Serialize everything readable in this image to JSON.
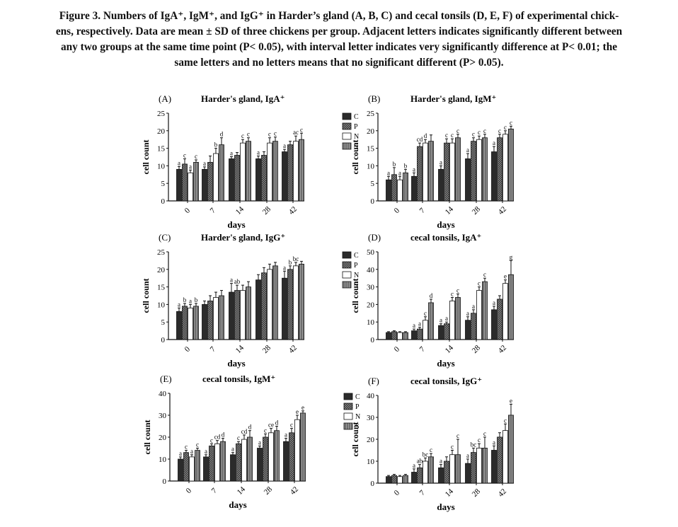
{
  "caption": {
    "l1": "Figure 3. Numbers of IgA⁺, IgM⁺, and IgG⁺ in Harder’s gland (A, B, C) and cecal tonsils (D, E, F) of experimental chick-",
    "l2": "ens, respectively. Data are mean ± SD of three chickens per group. Adjacent letters indicates significantly different between",
    "l3": "any two groups at the same time point (P< 0.05), with interval letter indicates very significantly difference at P< 0.01; the",
    "l4": "same letters and no letters means that no significant different (P> 0.05)."
  },
  "colors": {
    "C": "#2b2b2b",
    "P": "#555555",
    "N": "#ffffff",
    "S": "#7a7a7a",
    "frame": "#111111"
  },
  "chart_data": [
    {
      "panel": "(A)",
      "title": "Harder's gland, IgA⁺",
      "type": "bar",
      "xlabel": "days",
      "ylabel": "cell count",
      "categories": [
        "0",
        "7",
        "14",
        "28",
        "42"
      ],
      "ylim": [
        0,
        25
      ],
      "yticks": [
        0,
        5,
        10,
        15,
        20,
        25
      ],
      "legend": [
        "C",
        "P",
        "N",
        "S"
      ],
      "series": [
        {
          "name": "C",
          "values": [
            9,
            9,
            12,
            12,
            14
          ],
          "err": [
            0.8,
            0.7,
            0.6,
            0.8,
            0.7
          ]
        },
        {
          "name": "P",
          "values": [
            10.5,
            11,
            13,
            13,
            16
          ],
          "err": [
            1.5,
            1.8,
            0.8,
            1,
            1
          ]
        },
        {
          "name": "N",
          "values": [
            8,
            13.5,
            16.5,
            16.5,
            17
          ],
          "err": [
            0.8,
            1.5,
            1,
            1.5,
            1.5
          ]
        },
        {
          "name": "S",
          "values": [
            11,
            16,
            17,
            17,
            17.5
          ],
          "err": [
            0.7,
            2,
            1,
            1.2,
            1.8
          ]
        }
      ],
      "labels": [
        [
          "a",
          "c",
          "a",
          "c"
        ],
        [
          "a",
          "",
          "b",
          "d"
        ],
        [
          "a",
          "",
          "c",
          "c"
        ],
        [
          "a",
          "",
          "c",
          "c"
        ],
        [
          "a",
          "",
          "ac",
          "c"
        ]
      ]
    },
    {
      "panel": "(B)",
      "title": "Harder's gland, IgM⁺",
      "type": "bar",
      "xlabel": "days",
      "ylabel": "cell count",
      "categories": [
        "0",
        "7",
        "14",
        "28",
        "42"
      ],
      "ylim": [
        0,
        25
      ],
      "yticks": [
        0,
        5,
        10,
        15,
        20,
        25
      ],
      "legend": [
        "C",
        "P",
        "N",
        "S"
      ],
      "series": [
        {
          "name": "C",
          "values": [
            6,
            7,
            9,
            12,
            14
          ],
          "err": [
            1,
            1,
            1,
            1.5,
            1.5
          ]
        },
        {
          "name": "P",
          "values": [
            7.5,
            15.5,
            16.5,
            17,
            18
          ],
          "err": [
            2,
            1,
            1.2,
            1,
            1
          ]
        },
        {
          "name": "N",
          "values": [
            6,
            16.5,
            16.5,
            17.5,
            19
          ],
          "err": [
            1,
            1,
            1.2,
            1,
            1
          ]
        },
        {
          "name": "S",
          "values": [
            8,
            17,
            18,
            18,
            20.5
          ],
          "err": [
            1,
            1.8,
            1,
            1,
            0.8
          ]
        }
      ],
      "labels": [
        [
          "a",
          "b",
          "a",
          "b"
        ],
        [
          "a",
          "cd",
          "d",
          ""
        ],
        [
          "a",
          "c",
          "c",
          "c"
        ],
        [
          "a",
          "c",
          "c",
          "c"
        ],
        [
          "a",
          "c",
          "c",
          "c"
        ]
      ]
    },
    {
      "panel": "(C)",
      "title": "Harder's gland, IgG⁺",
      "type": "bar",
      "xlabel": "days",
      "ylabel": "cell count",
      "categories": [
        "0",
        "7",
        "14",
        "28",
        "42"
      ],
      "ylim": [
        0,
        25
      ],
      "yticks": [
        0,
        5,
        10,
        15,
        20,
        25
      ],
      "legend": [
        "C",
        "P",
        "N",
        "S"
      ],
      "series": [
        {
          "name": "C",
          "values": [
            8,
            10,
            13.5,
            17,
            17.5
          ],
          "err": [
            1,
            1,
            2.5,
            1.5,
            2
          ]
        },
        {
          "name": "P",
          "values": [
            9.5,
            11,
            14,
            19,
            20
          ],
          "err": [
            0.8,
            1.5,
            1.5,
            1.5,
            1
          ]
        },
        {
          "name": "N",
          "values": [
            9,
            12,
            14,
            20,
            21
          ],
          "err": [
            1,
            1.5,
            1.5,
            1.5,
            1
          ]
        },
        {
          "name": "S",
          "values": [
            9.5,
            12.5,
            15,
            21,
            21.5
          ],
          "err": [
            0.8,
            1.5,
            1.5,
            1,
            0.8
          ]
        }
      ],
      "labels": [
        [
          "a",
          "b",
          "a",
          "b"
        ],
        [
          "",
          "",
          "",
          ""
        ],
        [
          "a",
          "ab",
          "",
          ""
        ],
        [
          "",
          "",
          "",
          ""
        ],
        [
          "a",
          "b",
          "bc",
          ""
        ]
      ]
    },
    {
      "panel": "(D)",
      "title": "cecal tonsils, IgA⁺",
      "type": "bar",
      "xlabel": "days",
      "ylabel": "cell count",
      "categories": [
        "0",
        "7",
        "14",
        "28",
        "42"
      ],
      "ylim": [
        0,
        50
      ],
      "yticks": [
        0,
        10,
        20,
        30,
        40,
        50
      ],
      "legend": [
        "C",
        "P",
        "N",
        "S"
      ],
      "series": [
        {
          "name": "C",
          "values": [
            4,
            5,
            8,
            11,
            17
          ],
          "err": [
            0.5,
            1,
            1,
            2,
            2
          ]
        },
        {
          "name": "P",
          "values": [
            4.5,
            6,
            9,
            15,
            23
          ],
          "err": [
            0.5,
            1,
            1,
            2,
            2
          ]
        },
        {
          "name": "N",
          "values": [
            4,
            11,
            22,
            28,
            32
          ],
          "err": [
            0.5,
            2,
            2,
            2,
            2
          ]
        },
        {
          "name": "S",
          "values": [
            4,
            21,
            24,
            33,
            37
          ],
          "err": [
            0.5,
            2,
            2,
            2,
            8
          ]
        }
      ],
      "labels": [
        [
          "",
          "",
          "",
          ""
        ],
        [
          "a",
          "a",
          "c",
          "d"
        ],
        [
          "a",
          "a",
          "c",
          "c"
        ],
        [
          "a",
          "a",
          "c",
          "c"
        ],
        [
          "a",
          "",
          "e",
          "g"
        ]
      ]
    },
    {
      "panel": "(E)",
      "title": "cecal tonsils, IgM⁺",
      "type": "bar",
      "xlabel": "days",
      "ylabel": "cell count",
      "categories": [
        "0",
        "7",
        "14",
        "28",
        "42"
      ],
      "ylim": [
        0,
        40
      ],
      "yticks": [
        0,
        10,
        20,
        30,
        40
      ],
      "legend": [
        "C",
        "P",
        "N",
        "S"
      ],
      "series": [
        {
          "name": "C",
          "values": [
            10,
            11,
            12,
            15,
            18
          ],
          "err": [
            1,
            1,
            1,
            1,
            1.5
          ]
        },
        {
          "name": "P",
          "values": [
            13,
            16,
            17,
            20,
            22
          ],
          "err": [
            1,
            1,
            1,
            1.5,
            2
          ]
        },
        {
          "name": "N",
          "values": [
            11,
            17,
            19,
            22,
            28
          ],
          "err": [
            1,
            1.5,
            2,
            2,
            2
          ]
        },
        {
          "name": "S",
          "values": [
            14,
            18,
            20,
            23,
            31
          ],
          "err": [
            1,
            1.5,
            3,
            2,
            1
          ]
        }
      ],
      "labels": [
        [
          "a",
          "c",
          "a",
          "c"
        ],
        [
          "a",
          "c",
          "cd",
          "d"
        ],
        [
          "a",
          "c",
          "cd",
          "d"
        ],
        [
          "a",
          "c",
          "ce",
          "d"
        ],
        [
          "a",
          "c",
          "e",
          "e"
        ]
      ]
    },
    {
      "panel": "(F)",
      "title": "cecal tonsils, IgG⁺",
      "type": "bar",
      "xlabel": "days",
      "ylabel": "cell count",
      "categories": [
        "0",
        "7",
        "14",
        "28",
        "42"
      ],
      "ylim": [
        0,
        40
      ],
      "yticks": [
        0,
        10,
        20,
        30,
        40
      ],
      "legend": [
        "C",
        "P",
        "N",
        "S"
      ],
      "series": [
        {
          "name": "C",
          "values": [
            3,
            5,
            7,
            9,
            15
          ],
          "err": [
            0.5,
            1.5,
            1.5,
            2,
            2
          ]
        },
        {
          "name": "P",
          "values": [
            3.5,
            7,
            10,
            14,
            21
          ],
          "err": [
            0.5,
            1.5,
            2,
            2,
            2
          ]
        },
        {
          "name": "N",
          "values": [
            3,
            10,
            13,
            16,
            24
          ],
          "err": [
            0.5,
            1.5,
            2,
            2,
            3
          ]
        },
        {
          "name": "S",
          "values": [
            3.5,
            12,
            13,
            16,
            31
          ],
          "err": [
            0.5,
            1.5,
            7,
            5,
            5
          ]
        }
      ],
      "labels": [
        [
          "",
          "",
          "",
          ""
        ],
        [
          "a",
          "ab",
          "bc",
          "c"
        ],
        [
          "a",
          "",
          "c",
          "c"
        ],
        [
          "a",
          "bc",
          "c",
          "c"
        ],
        [
          "a",
          "",
          "c",
          "e"
        ]
      ]
    }
  ]
}
